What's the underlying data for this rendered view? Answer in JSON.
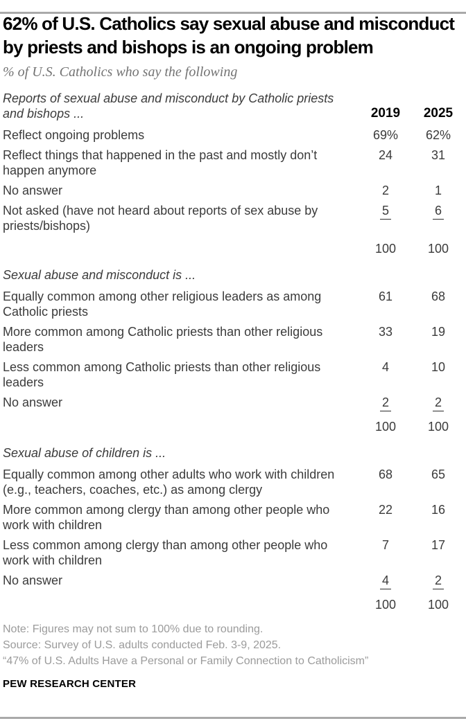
{
  "chart_data": {
    "type": "table",
    "title": "62% of U.S. Catholics say sexual abuse and misconduct by priests and bishops is an ongoing problem",
    "subtitle": "% of U.S. Catholics who say the following",
    "columns": [
      "2019",
      "2025"
    ],
    "sections": [
      {
        "header": "Reports of sexual abuse and misconduct by Catholic priests and bishops ...",
        "rows": [
          {
            "label": "Reflect ongoing problems",
            "values": [
              "69%",
              "62%"
            ]
          },
          {
            "label": "Reflect things that happened in the past and mostly don’t happen anymore",
            "values": [
              "24",
              "31"
            ]
          },
          {
            "label": "No answer",
            "values": [
              "2",
              "1"
            ]
          },
          {
            "label": "Not asked (have not heard about reports of sex abuse by priests/bishops)",
            "values": [
              "5",
              "6"
            ],
            "underlined": true
          }
        ],
        "total": [
          "100",
          "100"
        ]
      },
      {
        "header": "Sexual abuse and misconduct is ...",
        "rows": [
          {
            "label": "Equally common among other religious leaders as among Catholic priests",
            "values": [
              "61",
              "68"
            ]
          },
          {
            "label": "More common among Catholic priests than other religious leaders",
            "values": [
              "33",
              "19"
            ]
          },
          {
            "label": "Less common among Catholic priests than other religious leaders",
            "values": [
              "4",
              "10"
            ]
          },
          {
            "label": "No answer",
            "values": [
              "2",
              "2"
            ],
            "underlined": true
          }
        ],
        "total": [
          "100",
          "100"
        ]
      },
      {
        "header": "Sexual abuse of children is ...",
        "rows": [
          {
            "label": "Equally common among other adults who work with children (e.g., teachers, coaches, etc.) as among clergy",
            "values": [
              "68",
              "65"
            ]
          },
          {
            "label": "More common among clergy than among other people who work with children",
            "values": [
              "22",
              "16"
            ]
          },
          {
            "label": "Less common among clergy than among other people who work with children",
            "values": [
              "7",
              "17"
            ]
          },
          {
            "label": "No answer",
            "values": [
              "4",
              "2"
            ],
            "underlined": true
          }
        ],
        "total": [
          "100",
          "100"
        ]
      }
    ],
    "note": "Note: Figures may not sum to 100% due to rounding.",
    "source": "Source: Survey of U.S. adults conducted Feb. 3-9, 2025.",
    "report_title": "“47% of U.S. Adults Have a Personal or Family Connection to Catholicism”",
    "org": "PEW RESEARCH CENTER"
  },
  "colors": {
    "rule": "#a9a9a9",
    "title-text": "#000000",
    "subtitle-text": "#737373",
    "body-text": "#3b3b3b",
    "col-header-text": "#000000",
    "note-text": "#9b9b9b",
    "org-text": "#000000"
  }
}
